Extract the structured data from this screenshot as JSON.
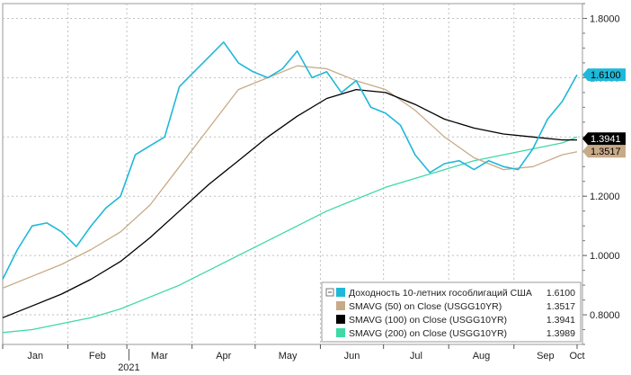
{
  "chart_data": {
    "type": "line",
    "x_label": "2021",
    "x_ticks": [
      "Jan",
      "Feb",
      "Mar",
      "Apr",
      "May",
      "Jun",
      "Jul",
      "Aug",
      "Sep",
      "Oct"
    ],
    "y_ticks": [
      "0.8000",
      "1.0000",
      "1.2000",
      "1.4000",
      "1.6000",
      "1.8000"
    ],
    "ylim": [
      0.7,
      1.85
    ],
    "grid": true,
    "legend_position": "bottom-right",
    "series": [
      {
        "name": "Доходность 10-летних гособлигаций США",
        "color": "#1fb8d8",
        "last_value": "1.6100",
        "x": [
          1,
          8,
          15,
          22,
          29,
          36,
          43,
          50,
          57,
          64,
          71,
          78,
          85,
          92,
          99,
          106,
          113,
          120,
          127,
          134,
          141,
          148,
          155,
          162,
          169,
          176,
          183,
          190,
          197,
          204,
          211,
          218,
          225,
          232,
          239,
          246,
          253,
          260,
          267,
          274
        ],
        "values": [
          0.92,
          1.02,
          1.1,
          1.11,
          1.08,
          1.03,
          1.1,
          1.16,
          1.2,
          1.34,
          1.37,
          1.4,
          1.57,
          1.62,
          1.67,
          1.72,
          1.65,
          1.62,
          1.6,
          1.63,
          1.69,
          1.6,
          1.62,
          1.55,
          1.59,
          1.5,
          1.48,
          1.44,
          1.34,
          1.28,
          1.31,
          1.32,
          1.29,
          1.32,
          1.3,
          1.29,
          1.36,
          1.46,
          1.52,
          1.61
        ]
      },
      {
        "name": "SMAVG (50)  on Close (USGG10YR)",
        "color": "#c8aa88",
        "last_value": "1.3517",
        "x": [
          1,
          15,
          29,
          43,
          57,
          71,
          85,
          99,
          113,
          127,
          141,
          155,
          169,
          183,
          197,
          211,
          225,
          239,
          253,
          267,
          274
        ],
        "values": [
          0.89,
          0.93,
          0.97,
          1.02,
          1.08,
          1.17,
          1.3,
          1.43,
          1.56,
          1.6,
          1.64,
          1.63,
          1.59,
          1.56,
          1.49,
          1.4,
          1.33,
          1.29,
          1.3,
          1.34,
          1.35
        ]
      },
      {
        "name": "SMAVG (100)  on Close (USGG10YR)",
        "color": "#000000",
        "last_value": "1.3941",
        "x": [
          1,
          15,
          29,
          43,
          57,
          71,
          85,
          99,
          113,
          127,
          141,
          155,
          169,
          183,
          197,
          211,
          225,
          239,
          253,
          267,
          274
        ],
        "values": [
          0.79,
          0.83,
          0.87,
          0.92,
          0.98,
          1.06,
          1.15,
          1.24,
          1.32,
          1.4,
          1.47,
          1.53,
          1.56,
          1.55,
          1.51,
          1.46,
          1.43,
          1.41,
          1.4,
          1.39,
          1.39
        ]
      },
      {
        "name": "SMAVG (200)  on Close (USGG10YR)",
        "color": "#3fd9a6",
        "last_value": "1.3989",
        "x": [
          1,
          15,
          29,
          43,
          57,
          71,
          85,
          99,
          113,
          127,
          141,
          155,
          169,
          183,
          197,
          211,
          225,
          239,
          253,
          267,
          274
        ],
        "values": [
          0.74,
          0.75,
          0.77,
          0.79,
          0.82,
          0.86,
          0.9,
          0.95,
          1.0,
          1.05,
          1.1,
          1.15,
          1.19,
          1.23,
          1.26,
          1.29,
          1.32,
          1.34,
          1.36,
          1.38,
          1.4
        ]
      }
    ]
  }
}
